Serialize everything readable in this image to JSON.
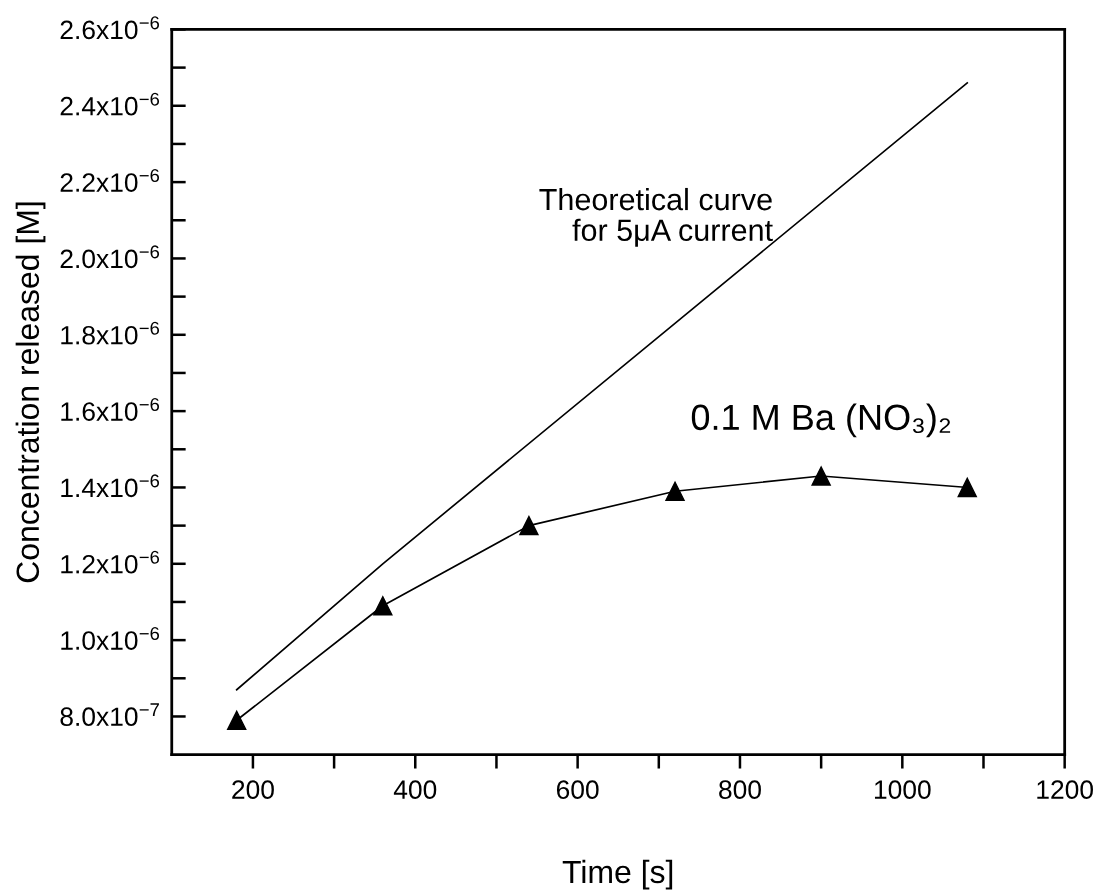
{
  "chart_data": {
    "type": "line",
    "xlabel": "Time [s]",
    "ylabel": "Concentration released [M]",
    "xlim": [
      100,
      1200
    ],
    "ylim": [
      7e-07,
      2.6e-06
    ],
    "xticks": [
      {
        "value": 200,
        "label": "200"
      },
      {
        "value": 300,
        "label": null
      },
      {
        "value": 400,
        "label": "400"
      },
      {
        "value": 500,
        "label": null
      },
      {
        "value": 600,
        "label": "600"
      },
      {
        "value": 700,
        "label": null
      },
      {
        "value": 800,
        "label": "800"
      },
      {
        "value": 900,
        "label": null
      },
      {
        "value": 1000,
        "label": "1000"
      },
      {
        "value": 1100,
        "label": null
      },
      {
        "value": 1200,
        "label": "1200"
      }
    ],
    "yticks": [
      {
        "value": 8e-07,
        "label": "8.0x10$^{−7}$"
      },
      {
        "value": 9e-07,
        "label": null
      },
      {
        "value": 1e-06,
        "label": "1.0x10$^{−6}$"
      },
      {
        "value": 1.1e-06,
        "label": null
      },
      {
        "value": 1.2e-06,
        "label": "1.2x10$^{−6}$"
      },
      {
        "value": 1.3e-06,
        "label": null
      },
      {
        "value": 1.4e-06,
        "label": "1.4x10$^{−6}$"
      },
      {
        "value": 1.5e-06,
        "label": null
      },
      {
        "value": 1.6e-06,
        "label": "1.6x10$^{−6}$"
      },
      {
        "value": 1.7e-06,
        "label": null
      },
      {
        "value": 1.8e-06,
        "label": "1.8x10$^{−6}$"
      },
      {
        "value": 1.9e-06,
        "label": null
      },
      {
        "value": 2e-06,
        "label": "2.0x10$^{−6}$"
      },
      {
        "value": 2.1e-06,
        "label": null
      },
      {
        "value": 2.2e-06,
        "label": "2.2x10$^{−6}$"
      },
      {
        "value": 2.3e-06,
        "label": null
      },
      {
        "value": 2.4e-06,
        "label": "2.4x10$^{−6}$"
      },
      {
        "value": 2.5e-06,
        "label": null
      },
      {
        "value": 2.6e-06,
        "label": "2.6x10$^{−6}$"
      }
    ],
    "grid": false,
    "legend": false,
    "line_style": "solid",
    "series": [
      {
        "name": "Theoretical curve\nfor 5μA current",
        "color": "#000000",
        "marker": "none",
        "x": [
          180,
          360,
          1080
        ],
        "values": [
          8.7e-07,
          1.2e-06,
          2.46e-06
        ]
      },
      {
        "name": "0.1 M Ba (NO₃)₂",
        "color": "#000000",
        "marker": "triangle",
        "x": [
          180,
          360,
          540,
          720,
          900,
          1080
        ],
        "values": [
          7.9e-07,
          1.09e-06,
          1.3e-06,
          1.39e-06,
          1.43e-06,
          1.4e-06
        ]
      }
    ]
  }
}
